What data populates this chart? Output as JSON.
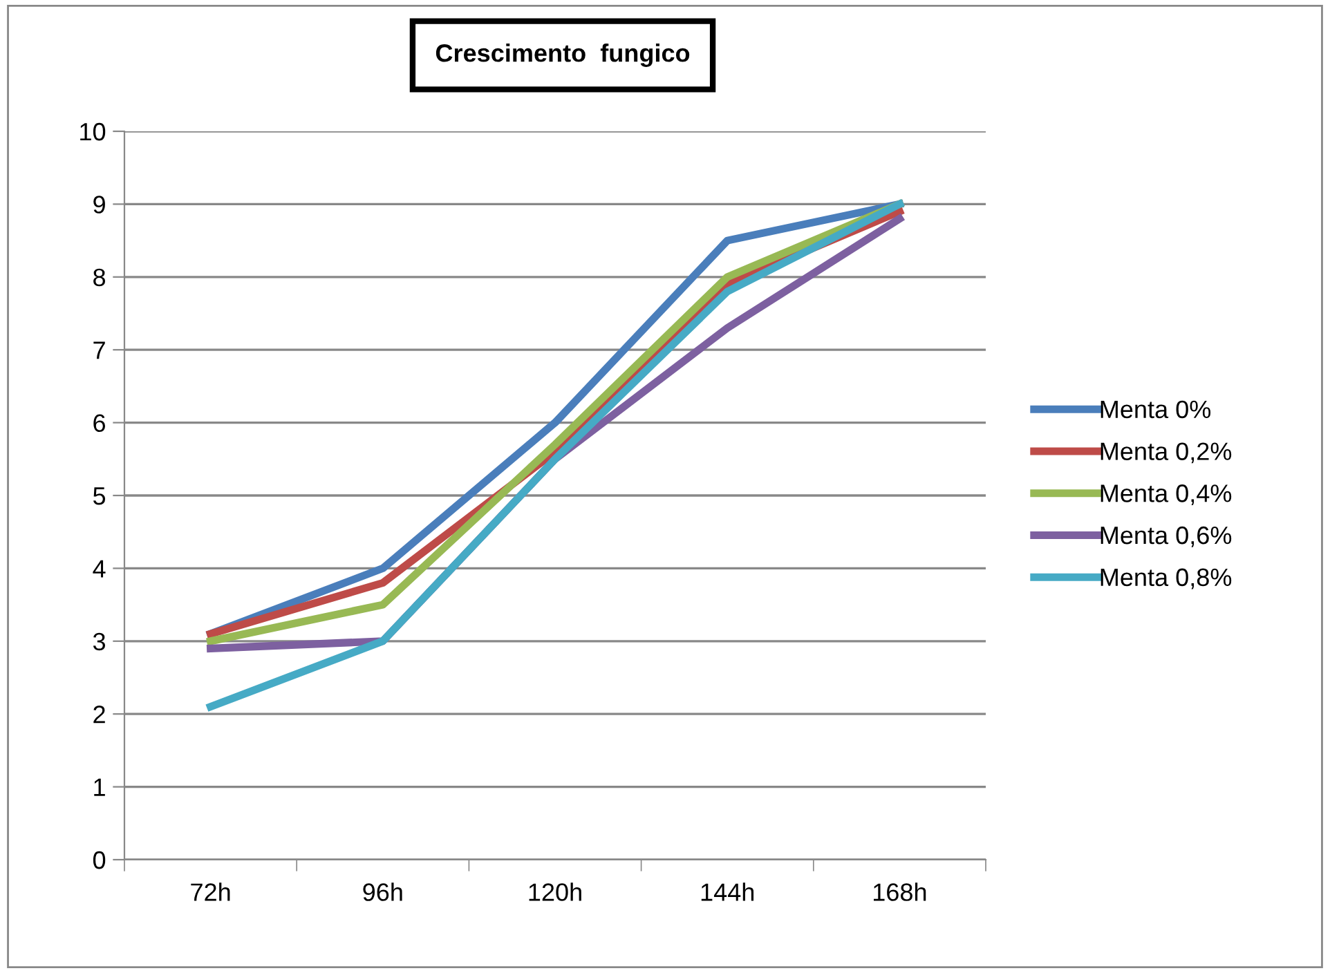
{
  "chart_data": {
    "type": "line",
    "title": "Crescimento  fungico",
    "categories": [
      "72h",
      "96h",
      "120h",
      "144h",
      "168h"
    ],
    "series": [
      {
        "name": "Menta 0%",
        "color": "#4a7ebb",
        "values": [
          3.1,
          4.0,
          6.0,
          8.5,
          9.0
        ]
      },
      {
        "name": "Menta 0,2%",
        "color": "#be4b48",
        "values": [
          3.1,
          3.8,
          5.6,
          7.9,
          8.9
        ]
      },
      {
        "name": "Menta 0,4%",
        "color": "#98b954",
        "values": [
          3.0,
          3.5,
          5.7,
          8.0,
          9.0
        ]
      },
      {
        "name": "Menta 0,6%",
        "color": "#7d60a0",
        "values": [
          2.9,
          3.0,
          5.5,
          7.3,
          8.8
        ]
      },
      {
        "name": "Menta 0,8%",
        "color": "#46aac5",
        "values": [
          2.1,
          3.0,
          5.5,
          7.8,
          9.0
        ]
      }
    ],
    "ylim": [
      0,
      10
    ],
    "yticks": [
      0,
      1,
      2,
      3,
      4,
      5,
      6,
      7,
      8,
      9,
      10
    ],
    "grid": "y",
    "legend": "right",
    "marker": "none",
    "line_style": "solid"
  }
}
